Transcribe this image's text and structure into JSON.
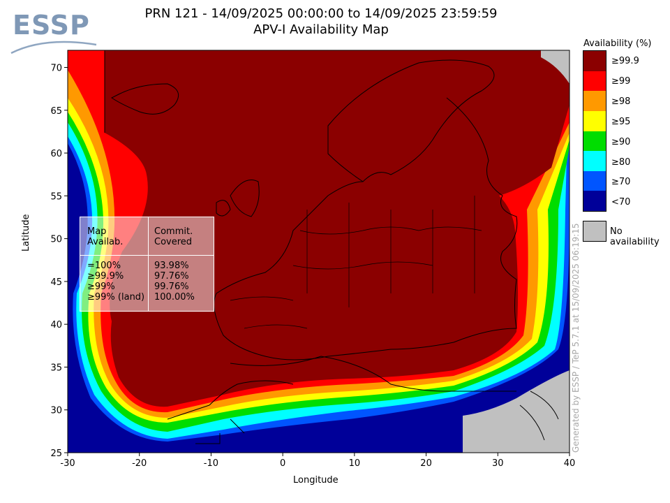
{
  "header": {
    "logo_text": "ESSP",
    "title_line1": "PRN 121 - 14/09/2025 00:00:00 to 14/09/2025 23:59:59",
    "title_line2": "APV-I Availability Map"
  },
  "axes": {
    "xlabel": "Longitude",
    "ylabel": "Latitude",
    "x_ticks": [
      "-30",
      "-20",
      "-10",
      "0",
      "10",
      "20",
      "30",
      "40"
    ],
    "y_ticks": [
      "70",
      "65",
      "60",
      "55",
      "50",
      "45",
      "40",
      "35",
      "30",
      "25"
    ],
    "xlim": [
      -30,
      40
    ],
    "ylim": [
      25,
      72
    ]
  },
  "legend": {
    "title": "Availability (%)",
    "items": [
      {
        "label": "≥99.9",
        "color": "#8b0000"
      },
      {
        "label": "≥99",
        "color": "#ff0000"
      },
      {
        "label": "≥98",
        "color": "#ff9900"
      },
      {
        "label": "≥95",
        "color": "#ffff00"
      },
      {
        "label": "≥90",
        "color": "#00dd00"
      },
      {
        "label": "≥80",
        "color": "#00ffff"
      },
      {
        "label": "≥70",
        "color": "#0055ff"
      },
      {
        "label": "<70",
        "color": "#000099"
      }
    ],
    "no_availability_label": "No availability",
    "no_availability_color": "#c0c0c0"
  },
  "stats": {
    "col1_header": "Map\nAvailab.",
    "col2_header": "Commit.\nCovered",
    "rows_col1": "=100%\n≥99.9%\n≥99%\n≥99% (land)",
    "rows_col2": "93.98%\n97.76%\n99.76%\n100.00%"
  },
  "watermark": "Generated by ESSP / TeP 5.7.1 at 15/09/2025 06:19:15"
}
